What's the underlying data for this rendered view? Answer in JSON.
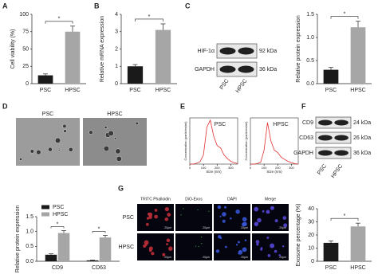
{
  "panels": {
    "letters": [
      "A",
      "B",
      "C",
      "D",
      "E",
      "F",
      "G"
    ]
  },
  "blots": [
    {
      "rows": [
        {
          "name": "HIF-1α",
          "size": "92 kDa"
        },
        {
          "name": "GAPDH",
          "size": "36 kDa"
        }
      ],
      "lanes": [
        "PSC",
        "HPSC"
      ]
    },
    {
      "rows": [
        {
          "name": "CD9",
          "size": "24 kDa"
        },
        {
          "name": "CD63",
          "size": "26 kDa"
        },
        {
          "name": "GAPDH",
          "size": "36 kDa"
        }
      ],
      "lanes": [
        "PSC",
        "HPSC"
      ]
    }
  ],
  "tem": {
    "labels": [
      "PSC",
      "HPSC"
    ]
  },
  "fluorescence": {
    "columns": [
      "TRITC Phalloidin",
      "DiO-Exos",
      "DAPI",
      "Merge"
    ],
    "rows": [
      "PSC",
      "HPSC"
    ],
    "scale_label": "20μm"
  },
  "chart_data": [
    {
      "type": "bar",
      "categories": [
        "PSC",
        "HPSC"
      ],
      "values": [
        12,
        75
      ],
      "errors": [
        2,
        8
      ],
      "colors": [
        "#1a1a1a",
        "#a6a6a6"
      ],
      "ylabel": "Cell viability (%)",
      "ylim": [
        0,
        100
      ],
      "yticks": [
        0,
        25,
        50,
        75,
        100
      ],
      "significance": "*"
    },
    {
      "type": "bar",
      "categories": [
        "PSC",
        "HPSC"
      ],
      "values": [
        1.0,
        3.1
      ],
      "errors": [
        0.1,
        0.35
      ],
      "colors": [
        "#1a1a1a",
        "#a6a6a6"
      ],
      "ylabel": "Relative mRNA expression",
      "ylim": [
        0,
        4
      ],
      "yticks": [
        0,
        1,
        2,
        3,
        4
      ],
      "significance": "*"
    },
    {
      "type": "bar",
      "categories": [
        "PSC",
        "HPSC"
      ],
      "values": [
        0.3,
        1.22
      ],
      "errors": [
        0.05,
        0.13
      ],
      "colors": [
        "#1a1a1a",
        "#a6a6a6"
      ],
      "ylabel": "Relative protein expression",
      "ylim": [
        0,
        1.5
      ],
      "yticks": [
        {
          "value": 0,
          "label": "0.0"
        },
        {
          "value": 0.5,
          "label": "0.5"
        },
        {
          "value": 1,
          "label": "1.0"
        },
        {
          "value": 1.5,
          "label": "1.5"
        }
      ],
      "significance": "*"
    },
    {
      "type": "line",
      "label": "PSC",
      "color": "#e03030",
      "xlabel": "Size (nm)",
      "ylabel": "Concentration (particles/ml)",
      "x": [
        0,
        25,
        50,
        75,
        100,
        125,
        150,
        175,
        200,
        225,
        250,
        275,
        300,
        325,
        350
      ],
      "values": [
        0,
        0,
        0.2,
        0.5,
        2,
        8,
        9.5,
        6,
        4,
        3.5,
        2,
        1.2,
        0.6,
        0.3,
        0.1
      ],
      "xlim": [
        0,
        350
      ],
      "xticks": [
        0,
        100,
        200,
        300
      ],
      "ylim": [
        0,
        10
      ]
    },
    {
      "type": "line",
      "label": "HPSC",
      "color": "#e03030",
      "xlabel": "Size (nm)",
      "ylabel": "Concentration (particles/ml)",
      "x": [
        0,
        25,
        50,
        75,
        100,
        125,
        150,
        175,
        200,
        225,
        250,
        275,
        300,
        325,
        350
      ],
      "values": [
        0,
        0,
        0.1,
        0.4,
        3,
        9,
        5,
        3,
        2.5,
        1.5,
        1,
        0.6,
        0.3,
        0.1,
        0
      ],
      "xlim": [
        0,
        350
      ],
      "xticks": [
        0,
        100,
        200,
        300
      ],
      "ylim": [
        0,
        10
      ]
    },
    {
      "type": "grouped",
      "categories": [
        "CD9",
        "CD63"
      ],
      "series": [
        {
          "name": "PSC",
          "color": "#1a1a1a",
          "values": [
            0.22,
            0.03
          ],
          "errors": [
            0.03,
            0.01
          ]
        },
        {
          "name": "HPSC",
          "color": "#a6a6a6",
          "values": [
            0.95,
            0.8
          ],
          "errors": [
            0.08,
            0.07
          ]
        }
      ],
      "ylabel": "Relative protein expression",
      "ylim": [
        0,
        1.5
      ],
      "yticks": [
        {
          "value": 0,
          "label": "0.0"
        },
        {
          "value": 0.5,
          "label": "0.5"
        },
        {
          "value": 1,
          "label": "1.0"
        },
        {
          "value": 1.5,
          "label": "1.5"
        }
      ],
      "significance": [
        "*",
        "*"
      ]
    },
    {
      "type": "bar",
      "categories": [
        "PSC",
        "HPSC"
      ],
      "values": [
        14,
        26.5
      ],
      "errors": [
        1.5,
        2.5
      ],
      "colors": [
        "#1a1a1a",
        "#a6a6a6"
      ],
      "ylabel": "Exosome percentage (%)",
      "ylim": [
        0,
        40
      ],
      "yticks": [
        0,
        10,
        20,
        30,
        40
      ],
      "significance": "*"
    }
  ]
}
